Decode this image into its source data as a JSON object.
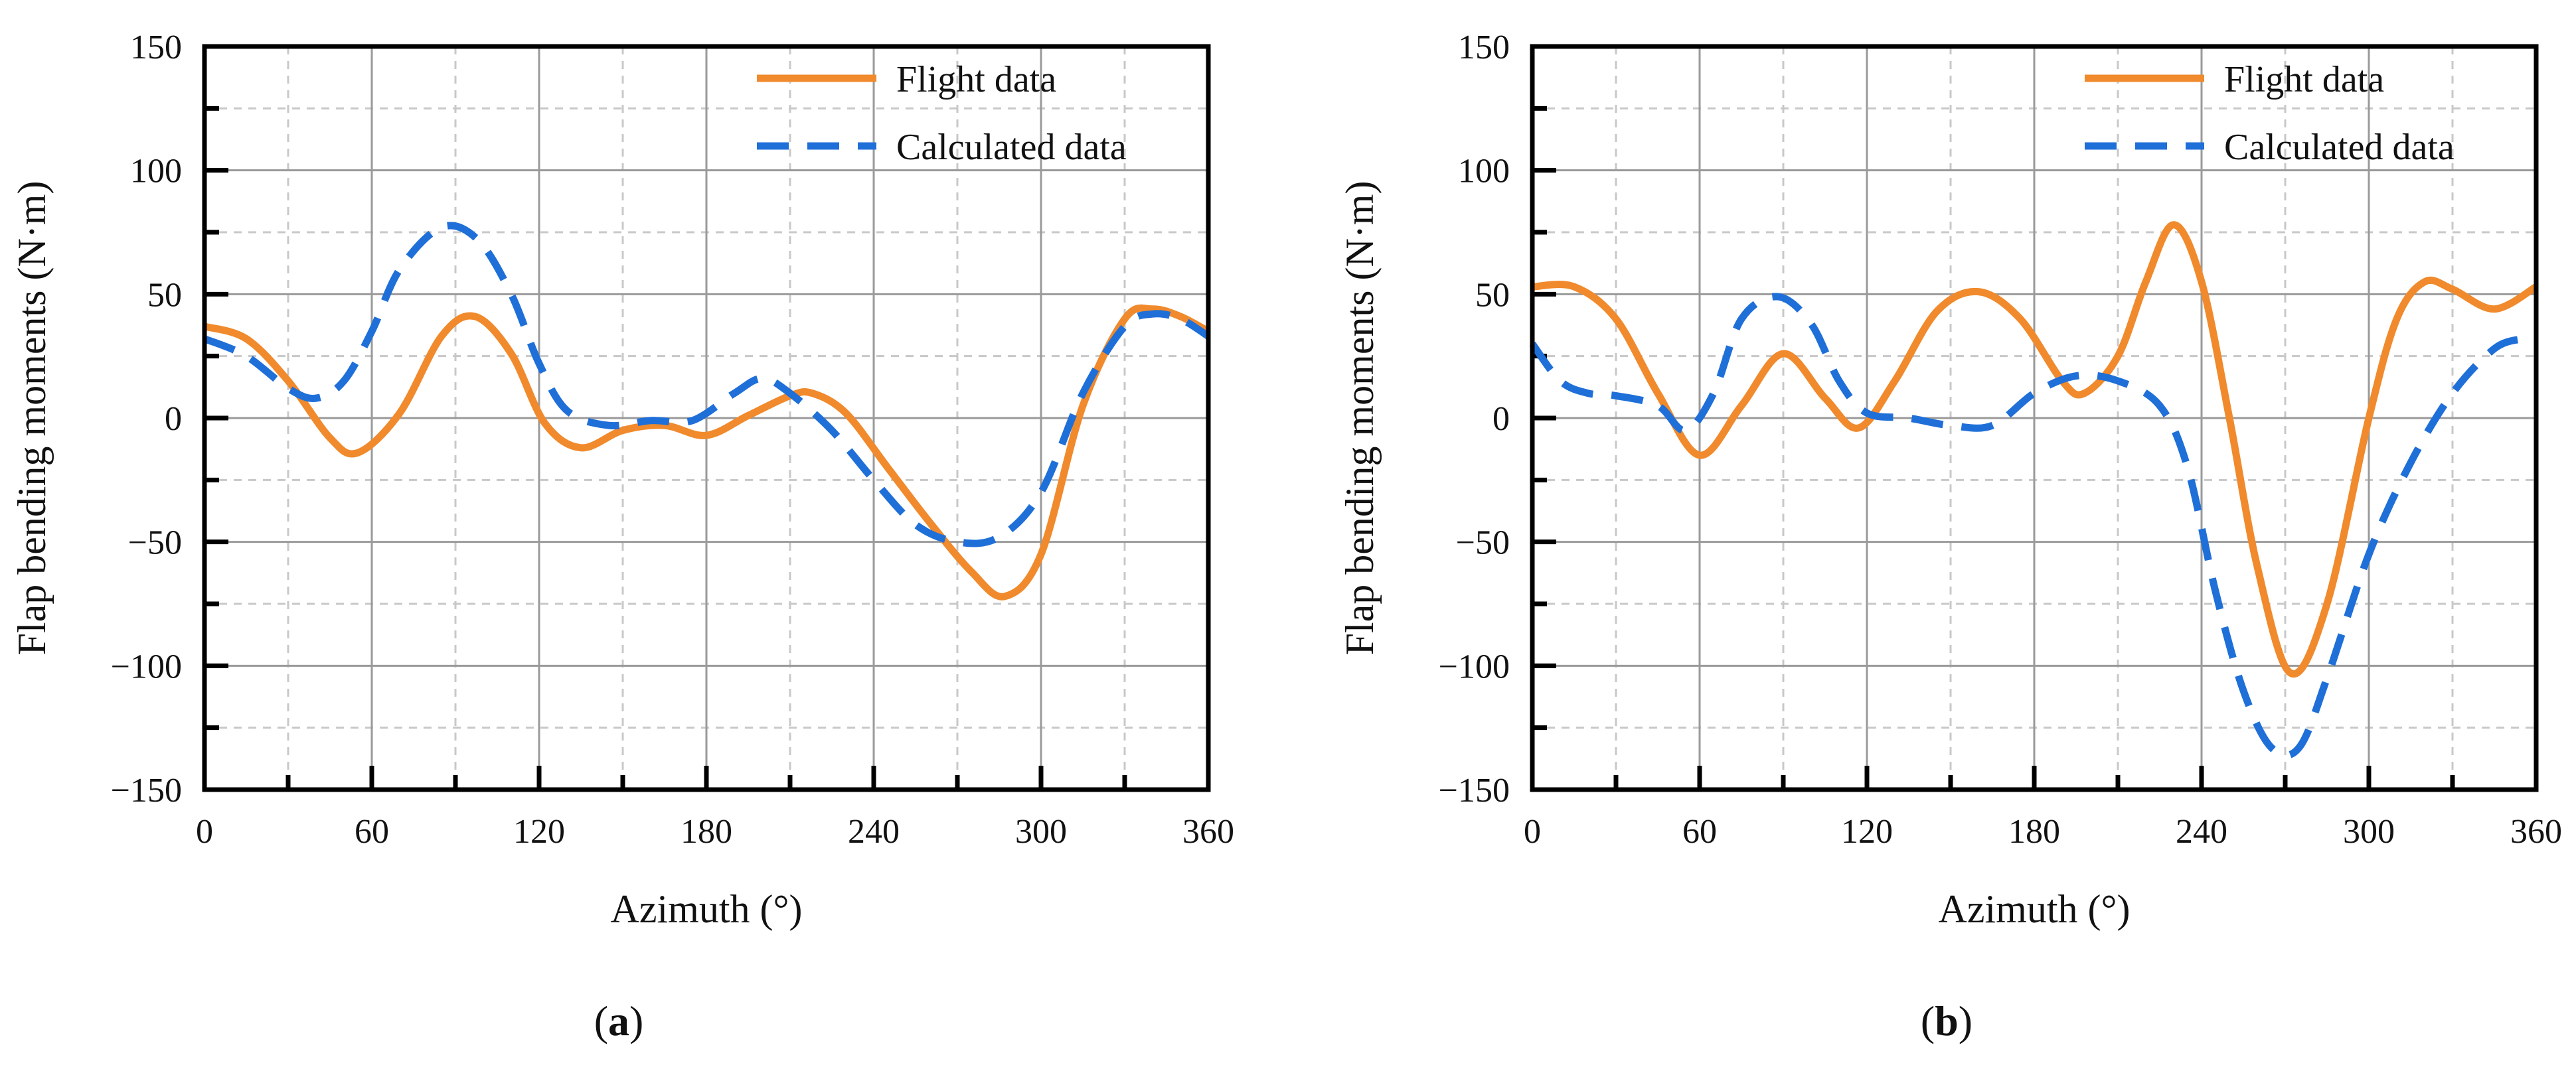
{
  "colors": {
    "flight": "#F08A2C",
    "calculated": "#1F6FD8",
    "grid_major": "#9a9a9a",
    "grid_minor": "#c8c8c8",
    "axis": "#000000"
  },
  "chart_data": [
    {
      "type": "line",
      "caption_letter": "a",
      "caption_open": "(",
      "caption_close": ")",
      "xlabel": "Azimuth (°)",
      "ylabel": "Flap bending moments (N·m)",
      "xlim": [
        0,
        360
      ],
      "ylim": [
        -150,
        150
      ],
      "xticks": [
        0,
        60,
        120,
        180,
        240,
        300,
        360
      ],
      "yticks": [
        150,
        100,
        50,
        0,
        -50,
        -100,
        -150
      ],
      "ytick_labels": [
        "150",
        "100",
        "50",
        "0",
        "−50",
        "−100",
        "−150"
      ],
      "legend_position": "top-right",
      "series": [
        {
          "name": "Flight data",
          "style": "solid",
          "x": [
            0,
            15,
            30,
            45,
            55,
            70,
            85,
            97,
            110,
            122,
            135,
            150,
            165,
            180,
            195,
            210,
            218,
            230,
            245,
            260,
            275,
            287,
            300,
            315,
            330,
            340,
            350,
            360
          ],
          "y": [
            37,
            32,
            15,
            -8,
            -14,
            2,
            33,
            41,
            26,
            -2,
            -12,
            -5,
            -3,
            -7,
            1,
            9,
            10,
            2,
            -20,
            -42,
            -62,
            -72,
            -55,
            5,
            40,
            44,
            41,
            35
          ]
        },
        {
          "name": "Calculated data",
          "style": "dashed",
          "x": [
            0,
            15,
            30,
            40,
            50,
            60,
            70,
            85,
            98,
            110,
            120,
            130,
            145,
            160,
            175,
            190,
            200,
            210,
            225,
            240,
            255,
            270,
            285,
            300,
            315,
            330,
            340,
            350,
            360
          ],
          "y": [
            32,
            25,
            12,
            8,
            15,
            35,
            60,
            77,
            72,
            50,
            22,
            3,
            -3,
            -1,
            -1,
            10,
            16,
            10,
            -5,
            -25,
            -43,
            -50,
            -48,
            -30,
            10,
            37,
            42,
            40,
            33
          ]
        }
      ]
    },
    {
      "type": "line",
      "caption_letter": "b",
      "caption_open": "(",
      "caption_close": ")",
      "xlabel": "Azimuth (°)",
      "ylabel": "Flap bending moments (N·m)",
      "xlim": [
        0,
        360
      ],
      "ylim": [
        -150,
        150
      ],
      "xticks": [
        0,
        60,
        120,
        180,
        240,
        300,
        360
      ],
      "yticks": [
        150,
        100,
        50,
        0,
        -50,
        -100,
        -150
      ],
      "ytick_labels": [
        "150",
        "100",
        "50",
        "0",
        "−50",
        "−100",
        "−150"
      ],
      "legend_position": "top-right",
      "series": [
        {
          "name": "Flight data",
          "style": "solid",
          "x": [
            0,
            15,
            30,
            45,
            60,
            75,
            90,
            105,
            117,
            130,
            145,
            160,
            175,
            190,
            198,
            210,
            220,
            230,
            240,
            250,
            260,
            272,
            285,
            300,
            310,
            320,
            330,
            345,
            360
          ],
          "y": [
            53,
            53,
            40,
            10,
            -15,
            5,
            26,
            8,
            -4,
            15,
            43,
            51,
            40,
            15,
            10,
            25,
            55,
            78,
            55,
            0,
            -60,
            -103,
            -75,
            0,
            40,
            55,
            52,
            44,
            53
          ]
        },
        {
          "name": "Calculated data",
          "style": "dashed",
          "x": [
            0,
            10,
            20,
            30,
            45,
            55,
            65,
            75,
            88,
            100,
            110,
            120,
            135,
            150,
            165,
            180,
            195,
            210,
            225,
            235,
            245,
            255,
            265,
            275,
            285,
            300,
            315,
            330,
            345,
            355
          ],
          "y": [
            30,
            15,
            10,
            9,
            5,
            -5,
            10,
            40,
            49,
            38,
            15,
            2,
            0,
            -3,
            -3,
            10,
            17,
            15,
            5,
            -20,
            -70,
            -110,
            -133,
            -133,
            -105,
            -55,
            -18,
            10,
            28,
            32
          ]
        }
      ]
    }
  ]
}
